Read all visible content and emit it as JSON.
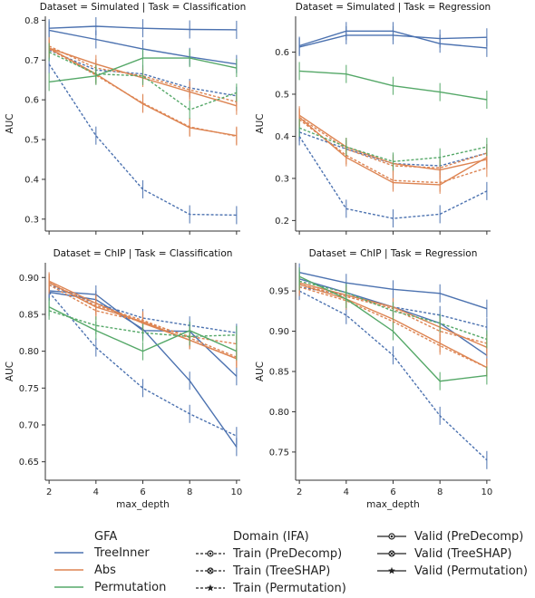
{
  "colors": {
    "TreeInner": "#4c72b0",
    "Abs": "#dd8452",
    "Permutation": "#55a868",
    "axis": "#333333"
  },
  "legend": {
    "gfa_title": "GFA",
    "gfa_items": [
      "TreeInner",
      "Abs",
      "Permutation"
    ],
    "domain_title": "Domain (IFA)",
    "domain_items": [
      {
        "label": "Train (PreDecomp)",
        "style": "dashed",
        "marker": "circle"
      },
      {
        "label": "Train (TreeSHAP)",
        "style": "dashed",
        "marker": "x-circle"
      },
      {
        "label": "Train (Permutation)",
        "style": "dashed",
        "marker": "star"
      },
      {
        "label": "Valid (PreDecomp)",
        "style": "solid",
        "marker": "circle"
      },
      {
        "label": "Valid (TreeSHAP)",
        "style": "solid",
        "marker": "x-circle"
      },
      {
        "label": "Valid (Permutation)",
        "style": "solid",
        "marker": "star"
      }
    ]
  },
  "chart_data": [
    {
      "type": "line",
      "title": "Dataset = Simulated | Task = Classification",
      "xlabel": "",
      "ylabel": "AUC",
      "x": [
        2,
        4,
        6,
        8,
        10
      ],
      "xticks": [
        2,
        4,
        6,
        8,
        10
      ],
      "xlim": [
        2,
        10
      ],
      "ylim": [
        0.27,
        0.81
      ],
      "yticks": [
        0.3,
        0.4,
        0.5,
        0.6,
        0.7,
        0.8
      ],
      "ytick_labels": [
        "0.3",
        "0.4",
        "0.5",
        "0.6",
        "0.7",
        "0.8"
      ],
      "series": [
        {
          "gfa": "TreeInner",
          "split": "Valid",
          "ifa": "PreDecomp",
          "values": [
            0.78,
            0.785,
            0.78,
            0.777,
            0.776
          ]
        },
        {
          "gfa": "TreeInner",
          "split": "Valid",
          "ifa": "TreeSHAP",
          "values": [
            0.775,
            0.752,
            0.728,
            0.708,
            0.69
          ]
        },
        {
          "gfa": "TreeInner",
          "split": "Train",
          "ifa": "TreeSHAP",
          "values": [
            0.725,
            0.675,
            0.665,
            0.63,
            0.61
          ]
        },
        {
          "gfa": "TreeInner",
          "split": "Train",
          "ifa": "PreDecomp",
          "values": [
            0.69,
            0.51,
            0.375,
            0.312,
            0.31
          ]
        },
        {
          "gfa": "Abs",
          "split": "Valid",
          "ifa": "TreeSHAP",
          "values": [
            0.73,
            0.69,
            0.655,
            0.62,
            0.585
          ]
        },
        {
          "gfa": "Abs",
          "split": "Valid",
          "ifa": "PreDecomp",
          "values": [
            0.73,
            0.665,
            0.59,
            0.53,
            0.51
          ]
        },
        {
          "gfa": "Abs",
          "split": "Train",
          "ifa": "PreDecomp",
          "values": [
            0.728,
            0.662,
            0.592,
            0.532,
            0.508
          ]
        },
        {
          "gfa": "Abs",
          "split": "Train",
          "ifa": "TreeSHAP",
          "values": [
            0.735,
            0.68,
            0.66,
            0.625,
            0.595
          ]
        },
        {
          "gfa": "Permutation",
          "split": "Valid",
          "ifa": "Permutation",
          "values": [
            0.645,
            0.66,
            0.705,
            0.705,
            0.68
          ]
        },
        {
          "gfa": "Permutation",
          "split": "Train",
          "ifa": "Permutation",
          "values": [
            0.72,
            0.665,
            0.66,
            0.575,
            0.618
          ]
        }
      ]
    },
    {
      "type": "line",
      "title": "Dataset = Simulated | Task = Regression",
      "xlabel": "",
      "ylabel": "AUC",
      "x": [
        2,
        4,
        6,
        8,
        10
      ],
      "xticks": [
        2,
        4,
        6,
        8,
        10
      ],
      "xlim": [
        2,
        10
      ],
      "ylim": [
        0.175,
        0.685
      ],
      "yticks": [
        0.2,
        0.3,
        0.4,
        0.5,
        0.6
      ],
      "ytick_labels": [
        "0.2",
        "0.3",
        "0.4",
        "0.5",
        "0.6"
      ],
      "series": [
        {
          "gfa": "TreeInner",
          "split": "Valid",
          "ifa": "PreDecomp",
          "values": [
            0.612,
            0.64,
            0.64,
            0.632,
            0.635
          ]
        },
        {
          "gfa": "TreeInner",
          "split": "Valid",
          "ifa": "TreeSHAP",
          "values": [
            0.615,
            0.65,
            0.65,
            0.62,
            0.61
          ]
        },
        {
          "gfa": "TreeInner",
          "split": "Train",
          "ifa": "PreDecomp",
          "values": [
            0.4,
            0.228,
            0.205,
            0.215,
            0.27
          ]
        },
        {
          "gfa": "TreeInner",
          "split": "Train",
          "ifa": "TreeSHAP",
          "values": [
            0.41,
            0.37,
            0.335,
            0.33,
            0.36
          ]
        },
        {
          "gfa": "Abs",
          "split": "Valid",
          "ifa": "PreDecomp",
          "values": [
            0.445,
            0.35,
            0.29,
            0.285,
            0.35
          ]
        },
        {
          "gfa": "Abs",
          "split": "Valid",
          "ifa": "TreeSHAP",
          "values": [
            0.45,
            0.375,
            0.335,
            0.32,
            0.345
          ]
        },
        {
          "gfa": "Abs",
          "split": "Train",
          "ifa": "PreDecomp",
          "values": [
            0.44,
            0.355,
            0.295,
            0.29,
            0.325
          ]
        },
        {
          "gfa": "Abs",
          "split": "Train",
          "ifa": "TreeSHAP",
          "values": [
            0.445,
            0.37,
            0.33,
            0.325,
            0.36
          ]
        },
        {
          "gfa": "Permutation",
          "split": "Valid",
          "ifa": "Permutation",
          "values": [
            0.555,
            0.548,
            0.52,
            0.505,
            0.487
          ]
        },
        {
          "gfa": "Permutation",
          "split": "Train",
          "ifa": "Permutation",
          "values": [
            0.42,
            0.375,
            0.34,
            0.35,
            0.375
          ]
        }
      ]
    },
    {
      "type": "line",
      "title": "Dataset = ChIP | Task = Classification",
      "xlabel": "max_depth",
      "ylabel": "AUC",
      "x": [
        2,
        4,
        6,
        8,
        10
      ],
      "xticks": [
        2,
        4,
        6,
        8,
        10
      ],
      "xlim": [
        2,
        10
      ],
      "ylim": [
        0.625,
        0.92
      ],
      "yticks": [
        0.65,
        0.7,
        0.75,
        0.8,
        0.85,
        0.9
      ],
      "ytick_labels": [
        "0.65",
        "0.70",
        "0.75",
        "0.80",
        "0.85",
        "0.90"
      ],
      "series": [
        {
          "gfa": "TreeInner",
          "split": "Valid",
          "ifa": "PreDecomp",
          "values": [
            0.882,
            0.877,
            0.828,
            0.827,
            0.766
          ]
        },
        {
          "gfa": "TreeInner",
          "split": "Valid",
          "ifa": "TreeSHAP",
          "values": [
            0.88,
            0.87,
            0.83,
            0.76,
            0.67
          ]
        },
        {
          "gfa": "TreeInner",
          "split": "Train",
          "ifa": "PreDecomp",
          "values": [
            0.88,
            0.805,
            0.75,
            0.715,
            0.685
          ]
        },
        {
          "gfa": "TreeInner",
          "split": "Train",
          "ifa": "TreeSHAP",
          "values": [
            0.89,
            0.865,
            0.845,
            0.835,
            0.825
          ]
        },
        {
          "gfa": "Abs",
          "split": "Valid",
          "ifa": "PreDecomp",
          "values": [
            0.893,
            0.86,
            0.84,
            0.815,
            0.79
          ]
        },
        {
          "gfa": "Abs",
          "split": "Valid",
          "ifa": "TreeSHAP",
          "values": [
            0.895,
            0.865,
            0.838,
            0.815,
            0.79
          ]
        },
        {
          "gfa": "Abs",
          "split": "Train",
          "ifa": "PreDecomp",
          "values": [
            0.893,
            0.862,
            0.842,
            0.818,
            0.792
          ]
        },
        {
          "gfa": "Abs",
          "split": "Train",
          "ifa": "TreeSHAP",
          "values": [
            0.89,
            0.855,
            0.84,
            0.82,
            0.81
          ]
        },
        {
          "gfa": "Permutation",
          "split": "Valid",
          "ifa": "Permutation",
          "values": [
            0.86,
            0.828,
            0.8,
            0.828,
            0.8
          ]
        },
        {
          "gfa": "Permutation",
          "split": "Train",
          "ifa": "Permutation",
          "values": [
            0.855,
            0.835,
            0.825,
            0.82,
            0.822
          ]
        }
      ]
    },
    {
      "type": "line",
      "title": "Dataset = ChIP | Task = Regression",
      "xlabel": "max_depth",
      "ylabel": "AUC",
      "x": [
        2,
        4,
        6,
        8,
        10
      ],
      "xticks": [
        2,
        4,
        6,
        8,
        10
      ],
      "xlim": [
        2,
        10
      ],
      "ylim": [
        0.715,
        0.985
      ],
      "yticks": [
        0.75,
        0.8,
        0.85,
        0.9,
        0.95
      ],
      "ytick_labels": [
        "0.75",
        "0.80",
        "0.85",
        "0.90",
        "0.95"
      ],
      "series": [
        {
          "gfa": "TreeInner",
          "split": "Valid",
          "ifa": "PreDecomp",
          "values": [
            0.973,
            0.96,
            0.952,
            0.947,
            0.928
          ]
        },
        {
          "gfa": "TreeInner",
          "split": "Valid",
          "ifa": "TreeSHAP",
          "values": [
            0.965,
            0.948,
            0.93,
            0.91,
            0.87
          ]
        },
        {
          "gfa": "TreeInner",
          "split": "Train",
          "ifa": "TreeSHAP",
          "values": [
            0.955,
            0.945,
            0.93,
            0.92,
            0.905
          ]
        },
        {
          "gfa": "TreeInner",
          "split": "Train",
          "ifa": "PreDecomp",
          "values": [
            0.95,
            0.92,
            0.87,
            0.795,
            0.74
          ]
        },
        {
          "gfa": "Abs",
          "split": "Valid",
          "ifa": "PreDecomp",
          "values": [
            0.958,
            0.94,
            0.915,
            0.885,
            0.855
          ]
        },
        {
          "gfa": "Abs",
          "split": "Valid",
          "ifa": "TreeSHAP",
          "values": [
            0.96,
            0.945,
            0.93,
            0.905,
            0.88
          ]
        },
        {
          "gfa": "Abs",
          "split": "Train",
          "ifa": "PreDecomp",
          "values": [
            0.955,
            0.938,
            0.912,
            0.882,
            0.855
          ]
        },
        {
          "gfa": "Abs",
          "split": "Train",
          "ifa": "TreeSHAP",
          "values": [
            0.958,
            0.943,
            0.928,
            0.9,
            0.885
          ]
        },
        {
          "gfa": "Permutation",
          "split": "Valid",
          "ifa": "Permutation",
          "values": [
            0.968,
            0.94,
            0.9,
            0.838,
            0.845
          ]
        },
        {
          "gfa": "Permutation",
          "split": "Train",
          "ifa": "Permutation",
          "values": [
            0.962,
            0.948,
            0.925,
            0.91,
            0.89
          ]
        }
      ]
    }
  ]
}
